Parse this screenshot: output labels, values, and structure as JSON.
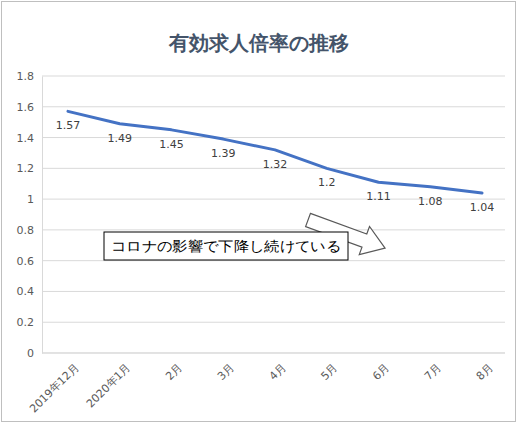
{
  "chart_data": {
    "type": "line",
    "title": "有効求人倍率の推移",
    "categories": [
      "2019年12月",
      "2020年1月",
      "2月",
      "3月",
      "4月",
      "5月",
      "6月",
      "7月",
      "8月"
    ],
    "values": [
      1.57,
      1.49,
      1.45,
      1.39,
      1.32,
      1.2,
      1.11,
      1.08,
      1.04
    ],
    "color": "#4472c4",
    "ylim": [
      0,
      1.8
    ],
    "yticks": [
      0,
      0.2,
      0.4,
      0.6,
      0.8,
      1,
      1.2,
      1.4,
      1.6,
      1.8
    ],
    "grid": true,
    "data_labels": true,
    "annotation": "コロナの影響で下降し続けている"
  }
}
